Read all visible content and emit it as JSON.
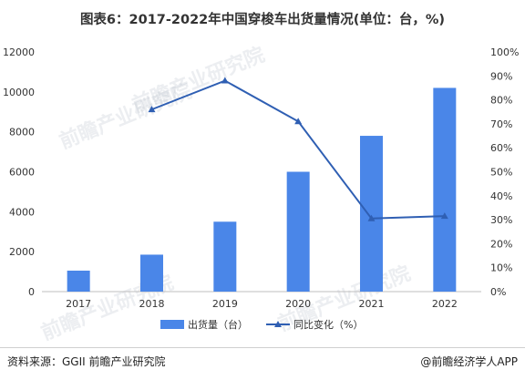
{
  "title": "图表6：2017-2022年中国穿梭车出货量情况(单位：台，%)",
  "source": "资料来源：GGII 前瞻产业研究院",
  "brand": "@前瞻经济学人APP",
  "watermark": "前瞻产业研究院",
  "chart_data": {
    "type": "bar",
    "categories": [
      "2017",
      "2018",
      "2019",
      "2020",
      "2021",
      "2022"
    ],
    "series": [
      {
        "name": "出货量（台）",
        "type": "bar",
        "axis": "left",
        "color": "#4a86e8",
        "values": [
          1050,
          1850,
          3500,
          6000,
          7800,
          10200
        ]
      },
      {
        "name": "同比变化（%）",
        "type": "line",
        "axis": "right",
        "color": "#2f5fb3",
        "values": [
          null,
          76,
          88,
          71,
          30.5,
          31.5
        ]
      }
    ],
    "y_left": {
      "min": 0,
      "max": 12000,
      "step": 2000,
      "ticks": [
        "0",
        "2000",
        "4000",
        "6000",
        "8000",
        "10000",
        "12000"
      ]
    },
    "y_right": {
      "min": 0,
      "max": 100,
      "step": 10,
      "ticks": [
        "0%",
        "10%",
        "20%",
        "30%",
        "40%",
        "50%",
        "60%",
        "70%",
        "80%",
        "90%",
        "100%"
      ]
    },
    "grid": false,
    "legend_position": "bottom"
  }
}
